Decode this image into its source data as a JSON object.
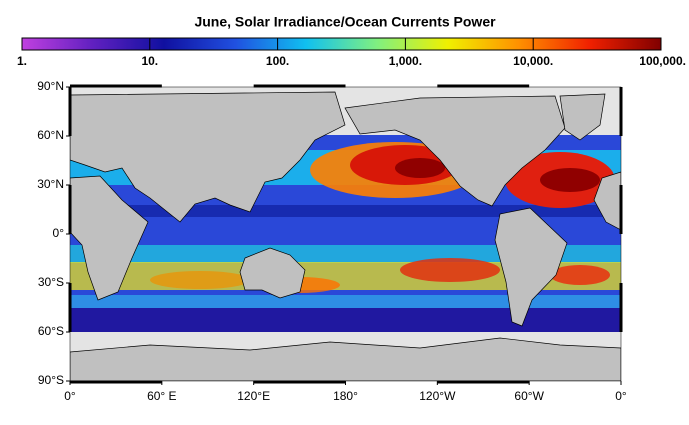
{
  "title": "June, Solar Irradiance/Ocean Currents Power",
  "colorbar": {
    "scale": "log",
    "lim": [
      1,
      100000
    ],
    "ticks": [
      {
        "value": 1,
        "label": "1."
      },
      {
        "value": 10,
        "label": "10."
      },
      {
        "value": 100,
        "label": "100."
      },
      {
        "value": 1000,
        "label": "1,000."
      },
      {
        "value": 10000,
        "label": "10,000."
      },
      {
        "value": 100000,
        "label": "100,000."
      }
    ],
    "colors": [
      "#c040e0",
      "#6020c0",
      "#1010a0",
      "#2050e0",
      "#10c0f0",
      "#80f080",
      "#f0f000",
      "#ff9000",
      "#f02000",
      "#800000"
    ]
  },
  "map": {
    "lat_lim": [
      -90,
      90
    ],
    "lon_lim": [
      0,
      360
    ],
    "lat_ticks": [
      {
        "value": 90,
        "label": "90°N"
      },
      {
        "value": 60,
        "label": "60°N"
      },
      {
        "value": 30,
        "label": "30°N"
      },
      {
        "value": 0,
        "label": "0°"
      },
      {
        "value": -30,
        "label": "30°S"
      },
      {
        "value": -60,
        "label": "60°S"
      },
      {
        "value": -90,
        "label": "90°S"
      }
    ],
    "lon_ticks": [
      {
        "value": 0,
        "label": "0°"
      },
      {
        "value": 60,
        "label": "60° E"
      },
      {
        "value": 120,
        "label": "120°E"
      },
      {
        "value": 180,
        "label": "180°"
      },
      {
        "value": 240,
        "label": "120°W"
      },
      {
        "value": 300,
        "label": "60°W"
      },
      {
        "value": 360,
        "label": "0°"
      }
    ]
  }
}
